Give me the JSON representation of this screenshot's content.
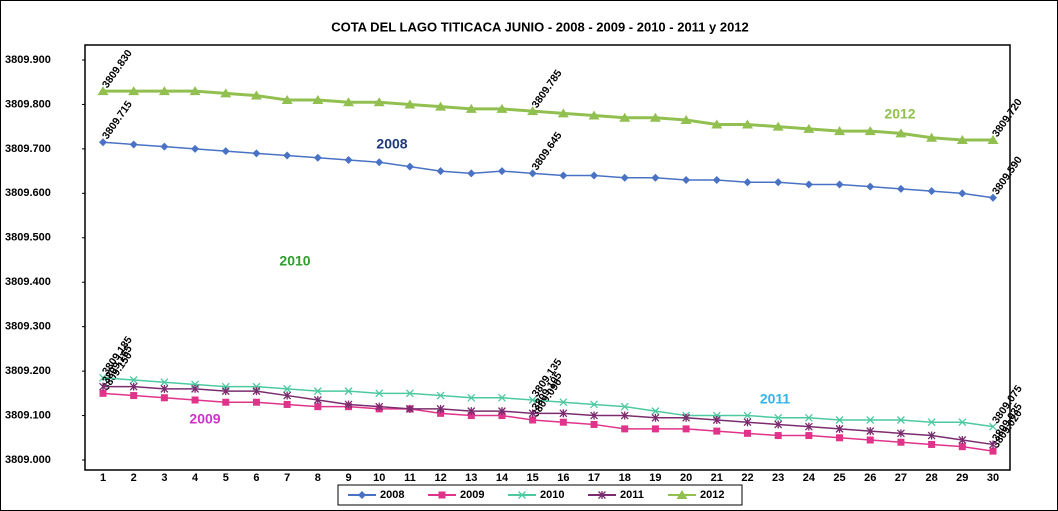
{
  "chart_data": {
    "type": "line",
    "title": "COTA  DEL  LAGO  TITICACA     JUNIO - 2008 - 2009 - 2010 - 2011 y 2012",
    "categories": [
      1,
      2,
      3,
      4,
      5,
      6,
      7,
      8,
      9,
      10,
      11,
      12,
      13,
      14,
      15,
      16,
      17,
      18,
      19,
      20,
      21,
      22,
      23,
      24,
      25,
      26,
      27,
      28,
      29,
      30
    ],
    "ylim": [
      3809.0,
      3809.9
    ],
    "yticks": [
      {
        "value": 3809.0,
        "label": "3809.000"
      },
      {
        "value": 3809.1,
        "label": "3809.100"
      },
      {
        "value": 3809.2,
        "label": "3809.200"
      },
      {
        "value": 3809.3,
        "label": "3809.300"
      },
      {
        "value": 3809.4,
        "label": "3809.400"
      },
      {
        "value": 3809.5,
        "label": "3809.500"
      },
      {
        "value": 3809.6,
        "label": "3809.600"
      },
      {
        "value": 3809.7,
        "label": "3809.700"
      },
      {
        "value": 3809.8,
        "label": "3809.800"
      },
      {
        "value": 3809.9,
        "label": "3809.900"
      }
    ],
    "legend": "bottom",
    "series": [
      {
        "name": "2008",
        "color": "#4a72c4",
        "marker": "diamond",
        "values": [
          3809.715,
          3809.71,
          3809.705,
          3809.7,
          3809.695,
          3809.69,
          3809.685,
          3809.68,
          3809.675,
          3809.67,
          3809.66,
          3809.65,
          3809.645,
          3809.65,
          3809.645,
          3809.64,
          3809.64,
          3809.635,
          3809.635,
          3809.63,
          3809.63,
          3809.625,
          3809.625,
          3809.62,
          3809.62,
          3809.615,
          3809.61,
          3809.605,
          3809.6,
          3809.59
        ],
        "value_labels": [
          "3809.715",
          null,
          null,
          null,
          null,
          null,
          null,
          null,
          null,
          null,
          null,
          null,
          null,
          null,
          "3809.645",
          null,
          null,
          null,
          null,
          null,
          null,
          null,
          null,
          null,
          null,
          null,
          null,
          null,
          null,
          "3809.590"
        ]
      },
      {
        "name": "2009",
        "color": "#e0338a",
        "marker": "square",
        "values": [
          3809.15,
          3809.145,
          3809.14,
          3809.135,
          3809.13,
          3809.13,
          3809.125,
          3809.12,
          3809.12,
          3809.115,
          3809.115,
          3809.105,
          3809.1,
          3809.1,
          3809.09,
          3809.085,
          3809.08,
          3809.07,
          3809.07,
          3809.07,
          3809.065,
          3809.06,
          3809.055,
          3809.055,
          3809.05,
          3809.045,
          3809.04,
          3809.035,
          3809.03,
          3809.02
        ],
        "value_labels": [
          "3809.150",
          null,
          null,
          null,
          null,
          null,
          null,
          null,
          null,
          null,
          null,
          null,
          null,
          null,
          "3809.090",
          null,
          null,
          null,
          null,
          null,
          null,
          null,
          null,
          null,
          null,
          null,
          null,
          null,
          null,
          "3809.020"
        ]
      },
      {
        "name": "2010",
        "color": "#4dc9a0",
        "marker": "x",
        "values": [
          3809.185,
          3809.18,
          3809.175,
          3809.17,
          3809.165,
          3809.165,
          3809.16,
          3809.155,
          3809.155,
          3809.15,
          3809.15,
          3809.145,
          3809.14,
          3809.14,
          3809.135,
          3809.13,
          3809.125,
          3809.12,
          3809.11,
          3809.1,
          3809.1,
          3809.1,
          3809.095,
          3809.095,
          3809.09,
          3809.09,
          3809.09,
          3809.085,
          3809.085,
          3809.075
        ],
        "value_labels": [
          "3809.185",
          null,
          null,
          null,
          null,
          null,
          null,
          null,
          null,
          null,
          null,
          null,
          null,
          null,
          "3809.135",
          null,
          null,
          null,
          null,
          null,
          null,
          null,
          null,
          null,
          null,
          null,
          null,
          null,
          null,
          "3809.075"
        ]
      },
      {
        "name": "2011",
        "color": "#7b2c6e",
        "marker": "star",
        "values": [
          3809.165,
          3809.165,
          3809.16,
          3809.16,
          3809.155,
          3809.155,
          3809.145,
          3809.135,
          3809.125,
          3809.12,
          3809.115,
          3809.115,
          3809.11,
          3809.11,
          3809.105,
          3809.105,
          3809.1,
          3809.1,
          3809.095,
          3809.095,
          3809.09,
          3809.085,
          3809.08,
          3809.075,
          3809.07,
          3809.065,
          3809.06,
          3809.055,
          3809.045,
          3809.035
        ],
        "value_labels": [
          "3809.165",
          null,
          null,
          null,
          null,
          null,
          null,
          null,
          null,
          null,
          null,
          null,
          null,
          null,
          "3809.105",
          null,
          null,
          null,
          null,
          null,
          null,
          null,
          null,
          null,
          null,
          null,
          null,
          null,
          null,
          "3809.035"
        ]
      },
      {
        "name": "2012",
        "color": "#92c050",
        "marker": "triangle",
        "values": [
          3809.83,
          3809.83,
          3809.83,
          3809.83,
          3809.825,
          3809.82,
          3809.81,
          3809.81,
          3809.805,
          3809.805,
          3809.8,
          3809.795,
          3809.79,
          3809.79,
          3809.785,
          3809.78,
          3809.775,
          3809.77,
          3809.77,
          3809.765,
          3809.755,
          3809.755,
          3809.75,
          3809.745,
          3809.74,
          3809.74,
          3809.735,
          3809.725,
          3809.72,
          3809.72
        ],
        "value_labels": [
          "3809.830",
          null,
          null,
          null,
          null,
          null,
          null,
          null,
          null,
          null,
          null,
          null,
          null,
          null,
          "3809.785",
          null,
          null,
          null,
          null,
          null,
          null,
          null,
          null,
          null,
          null,
          null,
          null,
          null,
          null,
          "3809.720"
        ]
      }
    ],
    "annotations": [
      {
        "text": "2008",
        "color": "#1f3a7a"
      },
      {
        "text": "2012",
        "color": "#92c050"
      },
      {
        "text": "2010",
        "color": "#2e9e2e"
      },
      {
        "text": "2009",
        "color": "#cc33cc"
      },
      {
        "text": "2011",
        "color": "#33b5e5"
      }
    ]
  }
}
